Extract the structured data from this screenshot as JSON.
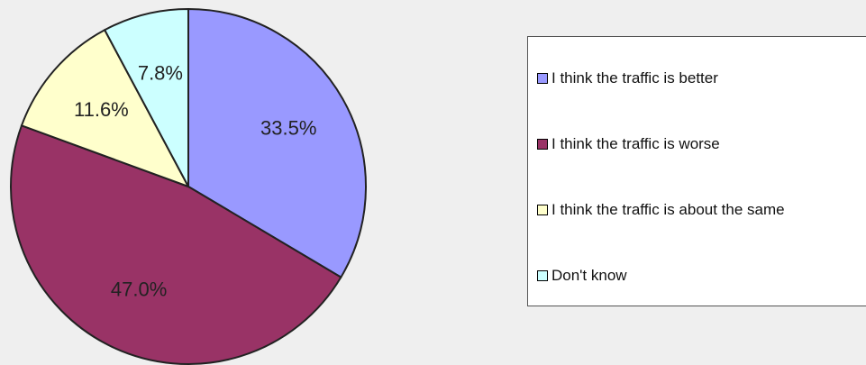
{
  "chart_data": {
    "type": "pie",
    "categories": [
      "I think the traffic is better",
      "I think the traffic is worse",
      "I think the traffic is about the same",
      "Don't know"
    ],
    "values": [
      33.5,
      47.0,
      11.6,
      7.8
    ],
    "value_labels": [
      "33.5%",
      "47.0%",
      "11.6%",
      "7.8%"
    ],
    "colors": [
      "#9999ff",
      "#993366",
      "#ffffcc",
      "#ccffff"
    ],
    "start_angle_deg": 0,
    "direction": "clockwise",
    "legend_position": "right"
  }
}
